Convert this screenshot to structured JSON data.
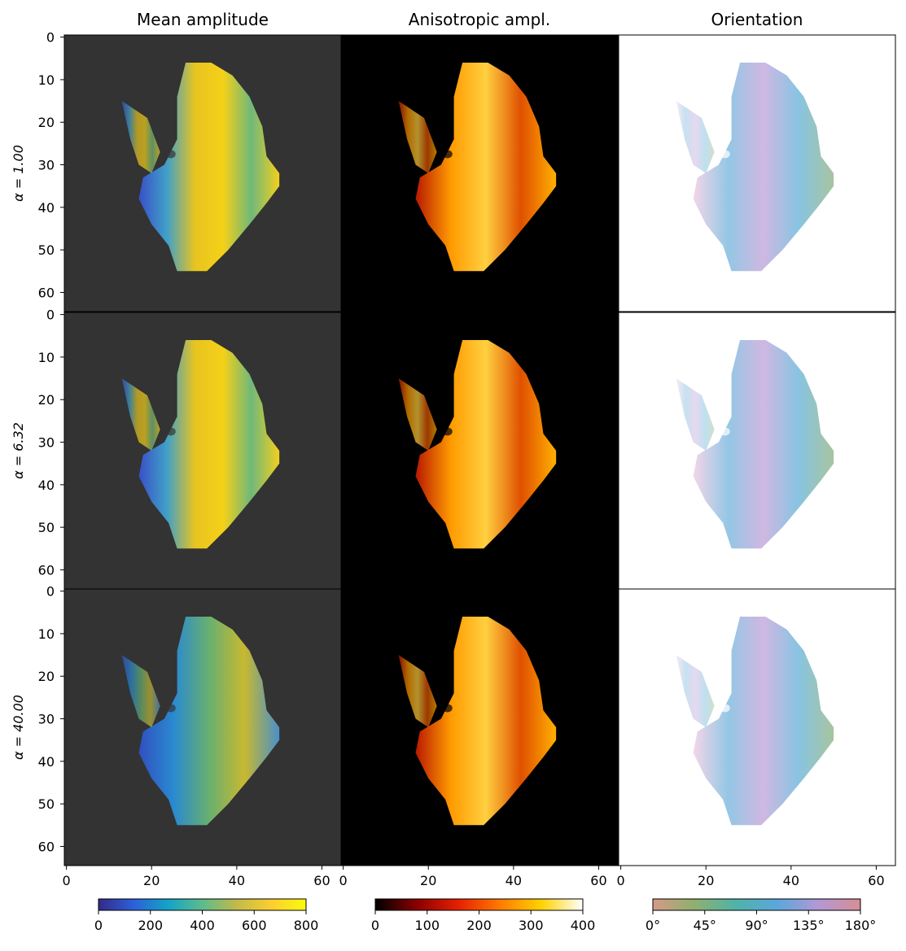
{
  "chart_data": {
    "type": "image-grid",
    "columns": [
      "Mean amplitude",
      "Anisotropic ampl.",
      "Orientation"
    ],
    "rows": [
      "α = 1.00",
      "α = 6.32",
      "α = 40.00"
    ],
    "xlim": [
      -0.5,
      64.5
    ],
    "ylim": [
      -0.5,
      64.5
    ],
    "xticks": [
      0,
      20,
      40,
      60
    ],
    "yticks": [
      0,
      10,
      20,
      30,
      40,
      50,
      60
    ],
    "backgrounds": [
      "#333333",
      "#000000",
      "#ffffff"
    ],
    "colorbars": [
      {
        "lim": [
          0,
          800
        ],
        "ticks": [
          0,
          200,
          400,
          600,
          800
        ],
        "colors": [
          "#352a87",
          "#2c5fd8",
          "#13a3c8",
          "#5cbc8c",
          "#c2ba4a",
          "#fcce2e",
          "#f9fb0e"
        ]
      },
      {
        "lim": [
          0,
          400
        ],
        "ticks": [
          0,
          100,
          200,
          300,
          400
        ],
        "colors": [
          "#000000",
          "#8a0000",
          "#e52000",
          "#ff7a00",
          "#ffd200",
          "#ffffff"
        ]
      },
      {
        "lim": [
          0,
          180
        ],
        "ticks": [
          {
            "value": 0,
            "label": "0°"
          },
          {
            "value": 45,
            "label": "45°"
          },
          {
            "value": 90,
            "label": "90°"
          },
          {
            "value": 135,
            "label": "135°"
          },
          {
            "value": 180,
            "label": "180°"
          }
        ],
        "colors": [
          "#d49a86",
          "#8fb06e",
          "#4fb3a8",
          "#5aa7dc",
          "#b398d4",
          "#d68e95"
        ]
      }
    ]
  }
}
